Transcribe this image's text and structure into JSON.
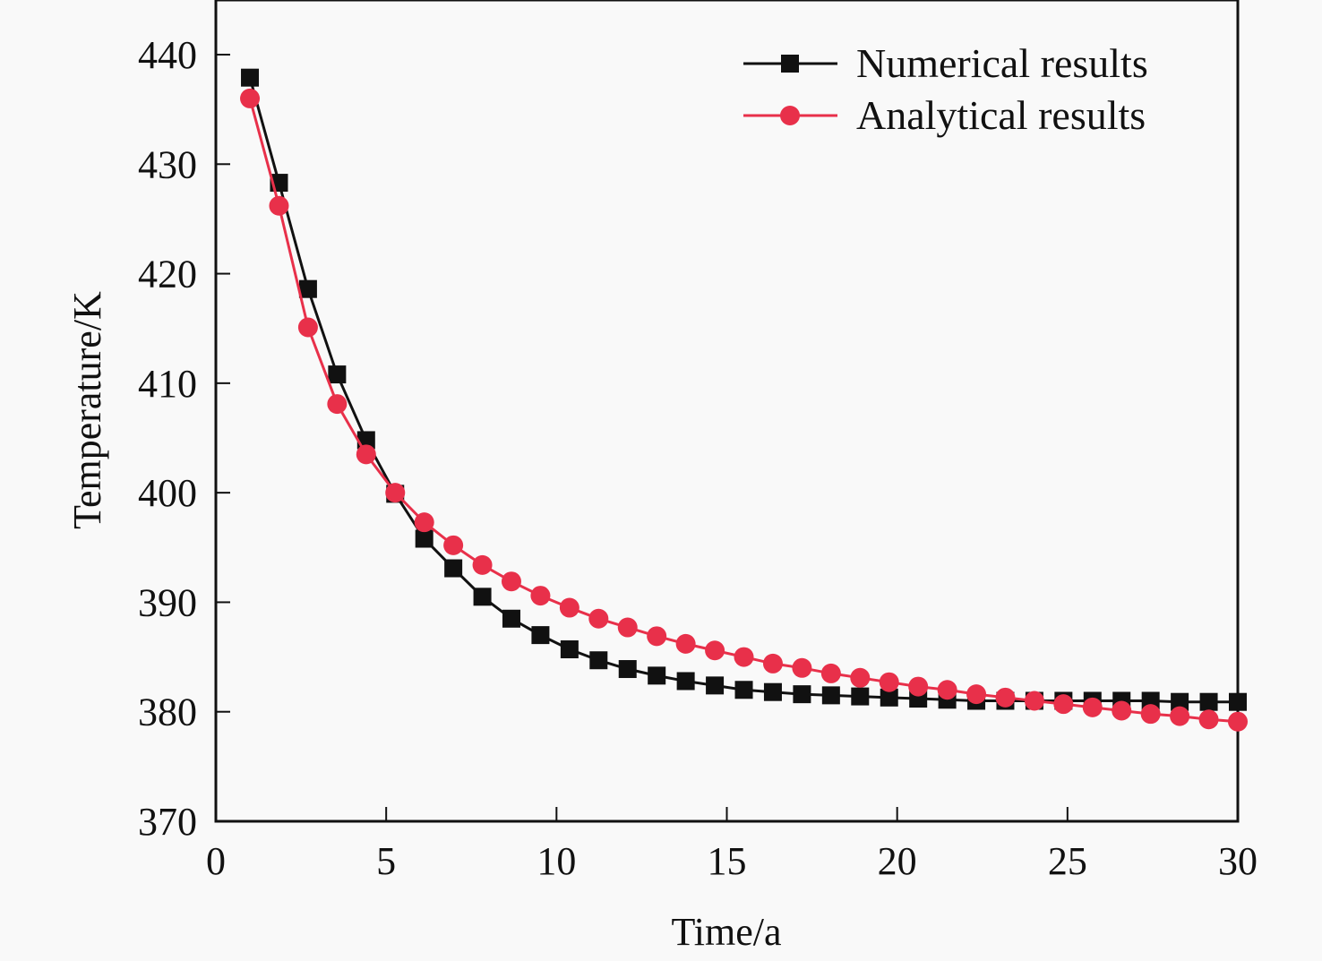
{
  "chart_data": {
    "type": "line",
    "title": "",
    "xlabel": "Time/a",
    "ylabel": "Temperature/K",
    "xlim": [
      0,
      30
    ],
    "ylim": [
      370,
      445
    ],
    "xticks": [
      0,
      5,
      10,
      15,
      20,
      25,
      30
    ],
    "yticks": [
      370,
      380,
      390,
      400,
      410,
      420,
      430,
      440
    ],
    "xtick_labels": [
      "0",
      "5",
      "10",
      "15",
      "20",
      "25",
      "30"
    ],
    "ytick_labels": [
      "370",
      "380",
      "390",
      "400",
      "410",
      "420",
      "430",
      "440"
    ],
    "grid": false,
    "legend_position": "top-right",
    "series": [
      {
        "name": "Numerical results",
        "color": "#111111",
        "marker": "square",
        "values": [
          437.9,
          428.3,
          418.6,
          410.8,
          404.8,
          399.9,
          395.8,
          393.1,
          390.5,
          388.5,
          387.0,
          385.7,
          384.7,
          383.9,
          383.3,
          382.8,
          382.4,
          382.0,
          381.8,
          381.6,
          381.5,
          381.4,
          381.3,
          381.2,
          381.1,
          381.0,
          381.0,
          381.0,
          381.0,
          381.0,
          381.0,
          381.0,
          380.9,
          380.9,
          380.9
        ]
      },
      {
        "name": "Analytical results",
        "color": "#e8304a",
        "marker": "circle",
        "values": [
          436.0,
          426.2,
          415.1,
          408.1,
          403.5,
          400.0,
          397.3,
          395.2,
          393.4,
          391.9,
          390.6,
          389.5,
          388.5,
          387.7,
          386.9,
          386.2,
          385.6,
          385.0,
          384.4,
          384.0,
          383.5,
          383.1,
          382.7,
          382.3,
          382.0,
          381.6,
          381.3,
          381.0,
          380.7,
          380.4,
          380.1,
          379.8,
          379.6,
          379.3,
          379.1
        ]
      }
    ],
    "x": [
      1.0,
      1.853,
      2.706,
      3.559,
      4.412,
      5.265,
      6.118,
      6.971,
      7.824,
      8.676,
      9.529,
      10.382,
      11.235,
      12.088,
      12.941,
      13.794,
      14.647,
      15.5,
      16.353,
      17.206,
      18.059,
      18.912,
      19.765,
      20.618,
      21.471,
      22.324,
      23.176,
      24.029,
      24.882,
      25.735,
      26.588,
      27.441,
      28.294,
      29.147,
      30.0
    ]
  }
}
